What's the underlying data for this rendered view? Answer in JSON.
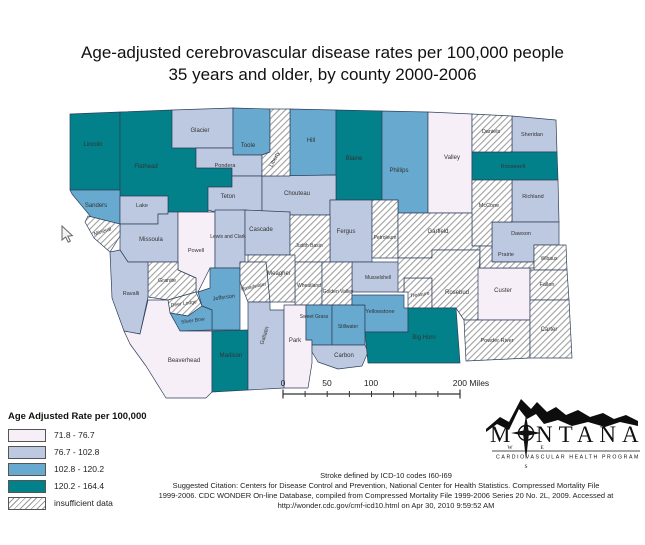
{
  "title": {
    "line1": "Age-adjusted cerebrovascular disease rates per 100,000 people",
    "line2": "35 years and older, by county 2000-2006"
  },
  "legend": {
    "title": "Age Adjusted Rate per 100,000",
    "classes": [
      {
        "label": "71.8 - 76.7",
        "color": "#f6eff7"
      },
      {
        "label": "76.7 - 102.8",
        "color": "#bdc9e1"
      },
      {
        "label": "102.8 - 120.2",
        "color": "#67a9cf"
      },
      {
        "label": "120.2 - 164.4",
        "color": "#02818a"
      },
      {
        "label": "insufficient data",
        "color": "hatch"
      }
    ]
  },
  "scale_bar": {
    "tick_labels": [
      "0",
      "50",
      "100"
    ],
    "end_label": "200 Miles"
  },
  "logo": {
    "brand_first": "M",
    "brand_rest": "NTANA",
    "subtitle": "CARDIOVASCULAR HEALTH PROGRAM",
    "compass_west": "W",
    "compass_east": "E",
    "compass_south": "S"
  },
  "citation": {
    "lines": [
      "Stroke defined by ICD-10 codes I60-I69",
      "Suggested Citation: Centers for Disease Control and Prevention, National Center for Health Statistics. Compressed Mortality File",
      "1999-2006. CDC WONDER On-line Database, compiled from Compressed Mortality File 1999-2006 Series 20 No. 2L, 2009. Accessed at",
      "http://wonder.cdc.gov/cmf-icd10.html on Apr 30, 2010 9:59:52 AM"
    ]
  },
  "map": {
    "counties": [
      {
        "id": "lincoln",
        "name": "Lincoln",
        "class_index": 3
      },
      {
        "id": "flathead",
        "name": "Flathead",
        "class_index": 3
      },
      {
        "id": "glacier",
        "name": "Glacier",
        "class_index": 1
      },
      {
        "id": "toole",
        "name": "Toole",
        "class_index": 2
      },
      {
        "id": "hill",
        "name": "Hill",
        "class_index": 2
      },
      {
        "id": "blaine",
        "name": "Blaine",
        "class_index": 3
      },
      {
        "id": "phillips",
        "name": "Phillips",
        "class_index": 2
      },
      {
        "id": "valley",
        "name": "Valley",
        "class_index": 0
      },
      {
        "id": "sheridan",
        "name": "Sheridan",
        "class_index": 1
      },
      {
        "id": "roosevelt",
        "name": "Roosevelt",
        "class_index": 3
      },
      {
        "id": "sanders",
        "name": "Sanders",
        "class_index": 2
      },
      {
        "id": "lake",
        "name": "Lake",
        "class_index": 1
      },
      {
        "id": "pondera",
        "name": "Pondera",
        "class_index": 1
      },
      {
        "id": "teton",
        "name": "Teton",
        "class_index": 1
      },
      {
        "id": "chouteau",
        "name": "Chouteau",
        "class_index": 1
      },
      {
        "id": "missoula",
        "name": "Missoula",
        "class_index": 1
      },
      {
        "id": "powell",
        "name": "Powell",
        "class_index": 0
      },
      {
        "id": "lewis_clark",
        "name": "Lewis and Clark",
        "class_index": 1
      },
      {
        "id": "cascade",
        "name": "Cascade",
        "class_index": 1
      },
      {
        "id": "fergus",
        "name": "Fergus",
        "class_index": 1
      },
      {
        "id": "richland",
        "name": "Richland",
        "class_index": 1
      },
      {
        "id": "dawson",
        "name": "Dawson",
        "class_index": 1
      },
      {
        "id": "mccone",
        "name": "McCone",
        "class_index": 4
      },
      {
        "id": "daniels",
        "name": "Daniels",
        "class_index": 4
      },
      {
        "id": "liberty",
        "name": "Liberty",
        "class_index": 4
      },
      {
        "id": "judith_basin",
        "name": "Judith Basin",
        "class_index": 4
      },
      {
        "id": "petroleum",
        "name": "Petroleum",
        "class_index": 4
      },
      {
        "id": "garfield",
        "name": "Garfield",
        "class_index": 4
      },
      {
        "id": "musselshell",
        "name": "Musselshell",
        "class_index": 1
      },
      {
        "id": "wheatland",
        "name": "Wheatland",
        "class_index": 4
      },
      {
        "id": "golden_valley",
        "name": "Golden Valley",
        "class_index": 4
      },
      {
        "id": "meagher",
        "name": "Meagher",
        "class_index": 4
      },
      {
        "id": "jefferson",
        "name": "Jefferson",
        "class_index": 2
      },
      {
        "id": "broadwater",
        "name": "Broadwater",
        "class_index": 4
      },
      {
        "id": "granite",
        "name": "Granite",
        "class_index": 4
      },
      {
        "id": "deer_lodge",
        "name": "Deer Lodge",
        "class_index": 4
      },
      {
        "id": "silver_bow",
        "name": "Silver Bow",
        "class_index": 2
      },
      {
        "id": "ravalli",
        "name": "Ravalli",
        "class_index": 1
      },
      {
        "id": "mineral",
        "name": "Mineral",
        "class_index": 4
      },
      {
        "id": "beaverhead",
        "name": "Beaverhead",
        "class_index": 0
      },
      {
        "id": "madison",
        "name": "Madison",
        "class_index": 3
      },
      {
        "id": "gallatin",
        "name": "Gallatin",
        "class_index": 1
      },
      {
        "id": "park",
        "name": "Park",
        "class_index": 0
      },
      {
        "id": "sweet_grass",
        "name": "Sweet Grass",
        "class_index": 2
      },
      {
        "id": "stillwater",
        "name": "Stillwater",
        "class_index": 2
      },
      {
        "id": "yellowstone",
        "name": "Yellowstone",
        "class_index": 2
      },
      {
        "id": "carbon",
        "name": "Carbon",
        "class_index": 1
      },
      {
        "id": "treasure",
        "name": "Treasure",
        "class_index": 4
      },
      {
        "id": "rosebud",
        "name": "Rosebud",
        "class_index": 4
      },
      {
        "id": "big_horn",
        "name": "Big Horn",
        "class_index": 3
      },
      {
        "id": "custer",
        "name": "Custer",
        "class_index": 0
      },
      {
        "id": "prairie",
        "name": "Prairie",
        "class_index": 4
      },
      {
        "id": "wibaux",
        "name": "Wibaux",
        "class_index": 4
      },
      {
        "id": "fallon",
        "name": "Fallon",
        "class_index": 4
      },
      {
        "id": "powder_river",
        "name": "Powder River",
        "class_index": 4
      },
      {
        "id": "carter",
        "name": "Carter",
        "class_index": 4
      }
    ]
  }
}
